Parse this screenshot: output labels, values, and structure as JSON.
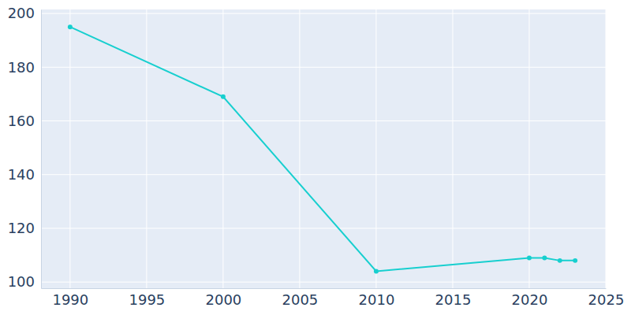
{
  "chart_data": {
    "type": "line",
    "x": [
      1990,
      2000,
      2010,
      2020,
      2021,
      2022,
      2023
    ],
    "values": [
      195,
      169,
      104,
      109,
      109,
      108,
      108
    ],
    "color": "#17cfcf",
    "marker": "circle",
    "xlim": [
      1988.1,
      2025
    ],
    "xticks": [
      1990,
      1995,
      2000,
      2005,
      2010,
      2015,
      2020,
      2025
    ],
    "ylim": [
      97.7,
      201.5
    ],
    "yticks": [
      100,
      120,
      140,
      160,
      180,
      200
    ],
    "grid": true
  }
}
